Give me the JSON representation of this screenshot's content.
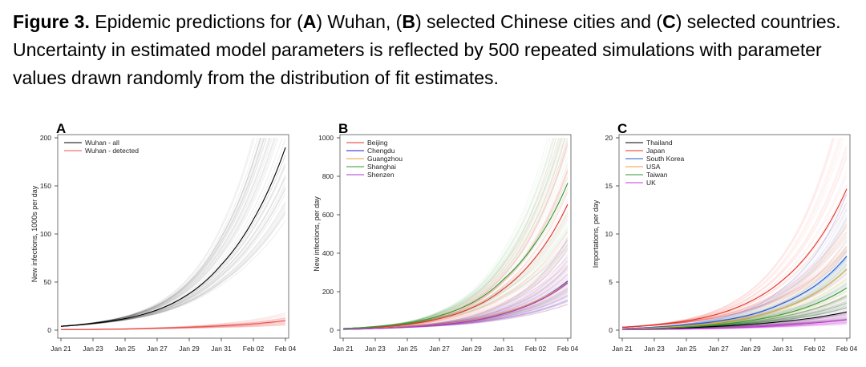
{
  "caption": {
    "label": "Figure 3.",
    "parts": [
      " Epidemic predictions for (",
      "A",
      ") Wuhan, (",
      "B",
      ") selected Chinese cities and (",
      "C",
      ") selected countries. Uncertainty in estimated model parameters is reflected by 500 repeated simulations with parameter values drawn randomly from the distribution of fit estimates."
    ]
  },
  "chart_data": [
    {
      "type": "line",
      "panel_label": "A",
      "ylabel": "New infections, 1000s per day",
      "xlabel": "",
      "x_ticks": [
        "Jan 21",
        "Jan 23",
        "Jan 25",
        "Jan 27",
        "Jan 29",
        "Jan 31",
        "Feb 02",
        "Feb 04"
      ],
      "x": [
        "Jan 21",
        "Jan 23",
        "Jan 25",
        "Jan 27",
        "Jan 29",
        "Jan 31",
        "Feb 02",
        "Feb 04"
      ],
      "ylim": [
        0,
        200
      ],
      "y_ticks": [
        0,
        50,
        100,
        150,
        200
      ],
      "legend_position": "top-left",
      "series": [
        {
          "name": "Wuhan - all",
          "color": "#000000",
          "values": [
            4,
            7,
            12,
            21,
            38,
            68,
            115,
            190
          ]
        },
        {
          "name": "Wuhan - detected",
          "color": "#e8534f",
          "values": [
            0.5,
            0.8,
            1.2,
            2,
            3,
            4.5,
            6.5,
            10
          ]
        }
      ]
    },
    {
      "type": "line",
      "panel_label": "B",
      "ylabel": "New infections, per day",
      "xlabel": "",
      "x_ticks": [
        "Jan 21",
        "Jan 23",
        "Jan 25",
        "Jan 27",
        "Jan 29",
        "Jan 31",
        "Feb 02",
        "Feb 04"
      ],
      "x": [
        "Jan 21",
        "Jan 23",
        "Jan 25",
        "Jan 27",
        "Jan 29",
        "Jan 31",
        "Feb 02",
        "Feb 04"
      ],
      "ylim": [
        0,
        1000
      ],
      "y_ticks": [
        0,
        200,
        400,
        600,
        800,
        1000
      ],
      "legend_position": "top-left",
      "series": [
        {
          "name": "Beijing",
          "color": "#e8302a",
          "values": [
            7,
            15,
            30,
            60,
            115,
            215,
            380,
            655
          ]
        },
        {
          "name": "Chengdu",
          "color": "#1c1cd6",
          "values": [
            5,
            10,
            18,
            30,
            52,
            90,
            150,
            255
          ]
        },
        {
          "name": "Guangzhou",
          "color": "#e8a33a",
          "values": [
            5,
            10,
            18,
            30,
            52,
            90,
            150,
            250
          ]
        },
        {
          "name": "Shanghai",
          "color": "#2e9a2e",
          "values": [
            8,
            18,
            36,
            75,
            140,
            265,
            455,
            765
          ]
        },
        {
          "name": "Shenzen",
          "color": "#a53ad6",
          "values": [
            4,
            9,
            16,
            28,
            48,
            85,
            145,
            245
          ]
        }
      ]
    },
    {
      "type": "line",
      "panel_label": "C",
      "ylabel": "Importations, per day",
      "xlabel": "",
      "x_ticks": [
        "Jan 21",
        "Jan 23",
        "Jan 25",
        "Jan 27",
        "Jan 29",
        "Jan 31",
        "Feb 02",
        "Feb 04"
      ],
      "x": [
        "Jan 21",
        "Jan 23",
        "Jan 25",
        "Jan 27",
        "Jan 29",
        "Jan 31",
        "Feb 02",
        "Feb 04"
      ],
      "ylim": [
        0,
        20
      ],
      "y_ticks": [
        0,
        5,
        10,
        15,
        20
      ],
      "legend_position": "top-left",
      "series": [
        {
          "name": "Thailand",
          "color": "#000000",
          "values": [
            0.1,
            0.15,
            0.25,
            0.4,
            0.6,
            0.9,
            1.3,
            1.9
          ]
        },
        {
          "name": "Japan",
          "color": "#e8302a",
          "values": [
            0.3,
            0.55,
            0.95,
            1.7,
            3,
            5.2,
            8.8,
            14.7
          ]
        },
        {
          "name": "South Korea",
          "color": "#1c5ad6",
          "values": [
            0.15,
            0.3,
            0.55,
            0.95,
            1.6,
            2.8,
            4.6,
            7.7
          ]
        },
        {
          "name": "USA",
          "color": "#e8a33a",
          "values": [
            0.12,
            0.25,
            0.45,
            0.8,
            1.35,
            2.3,
            3.8,
            6.3
          ]
        },
        {
          "name": "Taiwan",
          "color": "#2e9a2e",
          "values": [
            0.08,
            0.17,
            0.32,
            0.58,
            1,
            1.65,
            2.7,
            4.4
          ]
        },
        {
          "name": "UK",
          "color": "#c43ad6",
          "values": [
            0.05,
            0.08,
            0.13,
            0.2,
            0.32,
            0.5,
            0.75,
            1.1
          ]
        }
      ]
    }
  ]
}
